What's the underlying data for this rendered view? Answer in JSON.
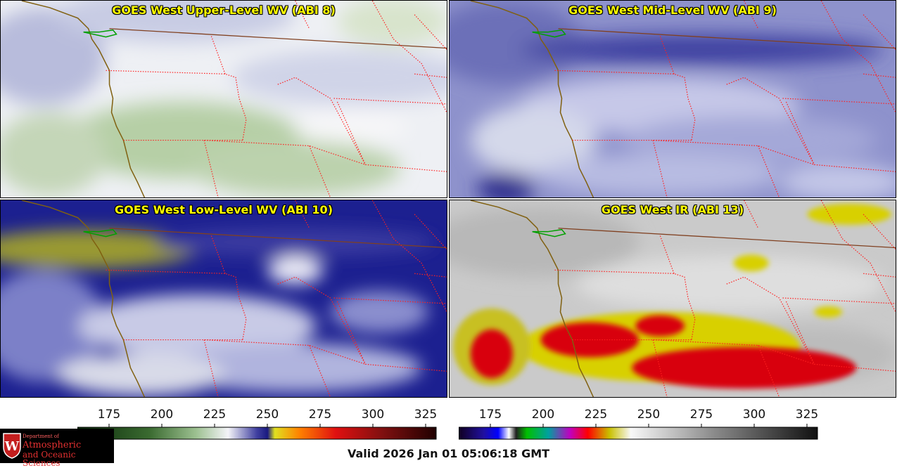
{
  "panels": [
    {
      "id": "wv8",
      "title": "GOES West Upper-Level WV (ABI 8)"
    },
    {
      "id": "wv9",
      "title": "GOES West Mid-Level WV (ABI 9)"
    },
    {
      "id": "wv10",
      "title": "GOES West Low-Level WV (ABI 10)"
    },
    {
      "id": "ir13",
      "title": "GOES West IR (ABI 13)"
    }
  ],
  "colorbar_wv": {
    "ticks": [
      "175",
      "200",
      "225",
      "250",
      "275",
      "300",
      "325"
    ],
    "min": 160,
    "max": 330
  },
  "colorbar_ir": {
    "ticks": [
      "175",
      "200",
      "225",
      "250",
      "275",
      "300",
      "325"
    ],
    "min": 160,
    "max": 330
  },
  "valid_time": "Valid 2026 Jan 01 05:06:18 GMT",
  "logo": {
    "dept": "Department of",
    "line1": "Atmospheric",
    "line2": "and Oceanic Sciences"
  },
  "colors": {
    "state_border": "#ff2020",
    "coast": "#806010",
    "lakes": "#00a000",
    "title": "#ffff00"
  }
}
